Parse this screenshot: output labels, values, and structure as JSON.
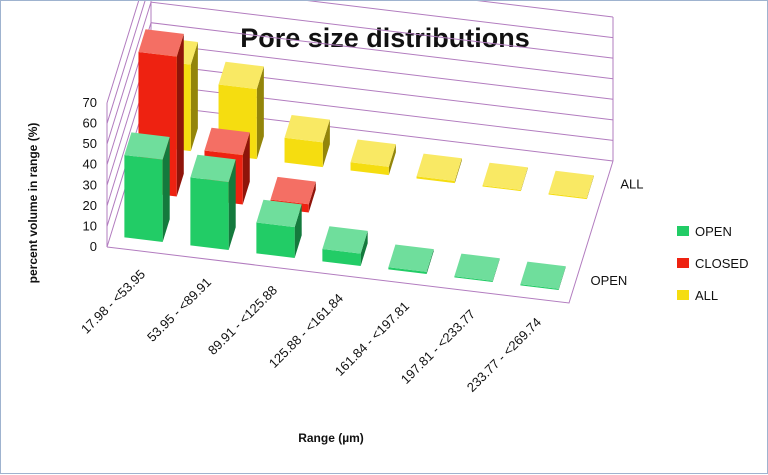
{
  "chart_data": {
    "type": "bar",
    "subtype": "3d-column",
    "title": "Pore size distributions",
    "xlabel": "Range (µm)",
    "ylabel": "percent volume in range (%)",
    "ylim": [
      0,
      70
    ],
    "yticks": [
      "0",
      "10",
      "20",
      "30",
      "40",
      "50",
      "60",
      "70"
    ],
    "categories": [
      "17.98 - <53.95",
      "53.95 - <89.91",
      "89.91 - <125.88",
      "125.88 - <161.84",
      "161.84 - <197.81",
      "197.81 - <233.77",
      "233.77 - <269.74"
    ],
    "depth_labels": [
      "ALL",
      "OPEN"
    ],
    "grid": true,
    "legend_position": "right",
    "series": [
      {
        "name": "OPEN",
        "color": "#22cc66",
        "values": [
          40,
          33,
          15,
          6,
          1,
          0.5,
          0.5
        ]
      },
      {
        "name": "CLOSED",
        "color": "#ee2211",
        "values": [
          68,
          24,
          4,
          0,
          0,
          0,
          0
        ]
      },
      {
        "name": "ALL",
        "color": "#f5dd10",
        "values": [
          42,
          34,
          12,
          4,
          1,
          0.5,
          0.5
        ]
      }
    ]
  }
}
